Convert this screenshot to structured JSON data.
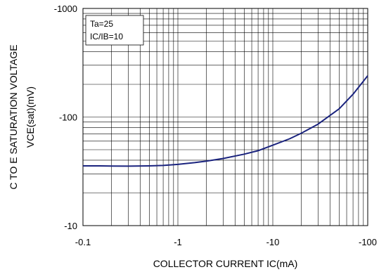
{
  "chart_data": {
    "type": "line",
    "xscale": "log",
    "yscale": "log",
    "xlabel": "COLLECTOR CURRENT  IC(mA)",
    "ylabel_line1": "C TO E SATURATION VOLTAGE",
    "ylabel_line2": "VCE(sat)(mV)",
    "xlim": [
      -0.1,
      -100
    ],
    "ylim": [
      -10,
      -1000
    ],
    "x_ticks": [
      {
        "value": -0.1,
        "label": "-0.1"
      },
      {
        "value": -1,
        "label": "-1"
      },
      {
        "value": -10,
        "label": "-10"
      },
      {
        "value": -100,
        "label": "-100"
      }
    ],
    "y_ticks": [
      {
        "value": -10,
        "label": "-10"
      },
      {
        "value": -100,
        "label": "-100"
      },
      {
        "value": -1000,
        "label": "-1000"
      }
    ],
    "grid": true,
    "legend_lines": [
      "Ta=25",
      "IC/IB=10"
    ],
    "legend_position": "top-left",
    "series": [
      {
        "color": "#1a237e",
        "x": [
          -0.1,
          -0.15,
          -0.2,
          -0.3,
          -0.5,
          -0.7,
          -1,
          -1.5,
          -2,
          -3,
          -5,
          -7,
          -10,
          -15,
          -20,
          -30,
          -50,
          -70,
          -100
        ],
        "y": [
          -35.5,
          -35.5,
          -35.4,
          -35.3,
          -35.5,
          -35.8,
          -36.6,
          -38,
          -39.3,
          -41.5,
          -45.5,
          -49,
          -55,
          -63,
          -71,
          -86,
          -119,
          -162,
          -240
        ]
      }
    ]
  }
}
